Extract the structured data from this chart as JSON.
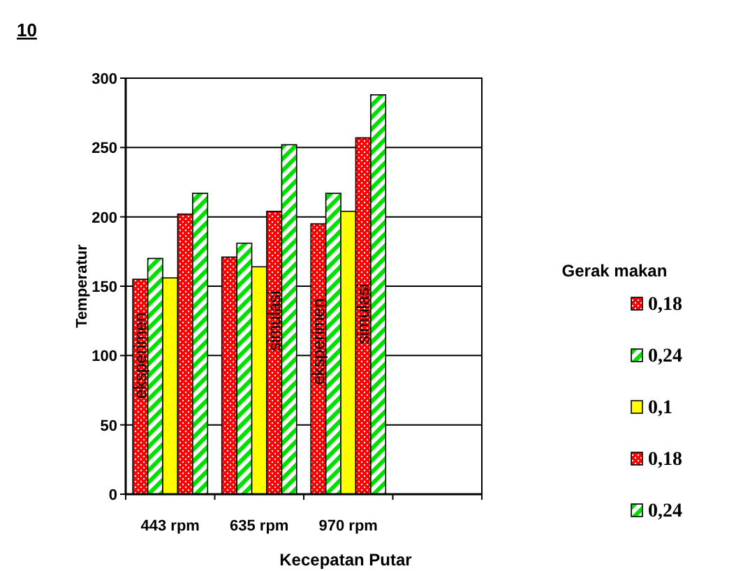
{
  "chart_data": {
    "type": "bar",
    "title": "10",
    "xlabel": "Kecepatan Putar",
    "ylabel": "Temperatur",
    "legend_title": "Gerak makan",
    "categories": [
      "443 rpm",
      "635 rpm",
      "970 rpm",
      null
    ],
    "series": [
      {
        "name": "0,18",
        "color": "#ff0000",
        "values": [
          155,
          171,
          195,
          null
        ]
      },
      {
        "name": "0,24",
        "color": "#00e000",
        "values": [
          170,
          181,
          217,
          null
        ]
      },
      {
        "name": "0,1",
        "color": "#ffff00",
        "values": [
          156,
          164,
          204,
          null
        ]
      },
      {
        "name": "0,18",
        "color": "#ff0000",
        "values": [
          202,
          204,
          257,
          null
        ]
      },
      {
        "name": "0,24",
        "color": "#00e000",
        "values": [
          217,
          252,
          288,
          null
        ]
      }
    ],
    "annotations": [
      {
        "text": "eksperimen",
        "x": "443 rpm",
        "y": 100
      },
      {
        "text": "simulasi",
        "x": "635 rpm",
        "y": 125
      },
      {
        "text": "eksperimen",
        "x": "970 rpm",
        "y": 110
      },
      {
        "text": "simulasi",
        "x": "970 rpm",
        "y": 130
      }
    ],
    "ylim": [
      0,
      300
    ],
    "yticks": [
      0,
      50,
      100,
      150,
      200,
      250,
      300
    ],
    "grid": "y",
    "legend": "right"
  }
}
